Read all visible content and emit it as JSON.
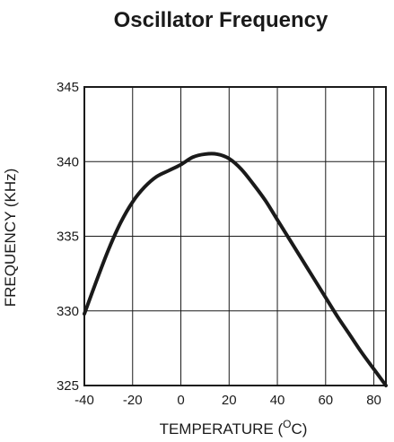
{
  "chart_data": {
    "type": "line",
    "title": "Oscillator Frequency",
    "xlabel_prefix": "TEMPERATURE (",
    "xlabel_super": "O",
    "xlabel_suffix": "C)",
    "ylabel": "FREQUENCY (KHz)",
    "xlim": [
      -40,
      85
    ],
    "ylim": [
      325,
      345
    ],
    "xticks": [
      -40,
      -20,
      0,
      20,
      40,
      60,
      80
    ],
    "yticks": [
      325,
      330,
      335,
      340,
      345
    ],
    "grid": true,
    "line_color": "#1a1a1a",
    "series": [
      {
        "x": [
          -40,
          -35,
          -30,
          -25,
          -20,
          -15,
          -10,
          -5,
          0,
          5,
          10,
          15,
          20,
          25,
          30,
          35,
          40,
          45,
          50,
          55,
          60,
          65,
          70,
          75,
          80,
          85
        ],
        "y": [
          329.8,
          332.0,
          334.1,
          335.9,
          337.3,
          338.3,
          339.0,
          339.4,
          339.8,
          340.3,
          340.5,
          340.5,
          340.2,
          339.5,
          338.5,
          337.4,
          336.1,
          334.8,
          333.5,
          332.2,
          330.9,
          329.6,
          328.4,
          327.2,
          326.1,
          325.0
        ]
      }
    ]
  }
}
